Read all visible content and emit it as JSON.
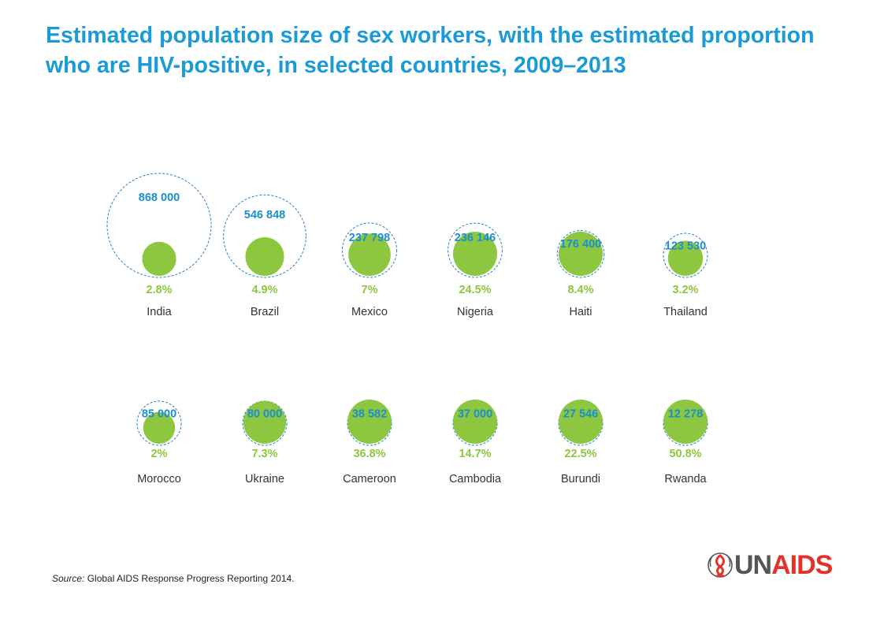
{
  "title": "Estimated population size of sex workers, with the estimated proportion who are HIV-positive, in selected countries, 2009–2013",
  "source": {
    "label": "Source:",
    "text": "Global AIDS Response Progress Reporting 2014."
  },
  "logo": {
    "part1": "UN",
    "part2": "AIDS",
    "icon": "ribbon-emblem-icon"
  },
  "colors": {
    "title": "#1a9ad6",
    "population_label": "#1a8fd0",
    "outline": "#2c7fc4",
    "hiv_bubble": "#8dc63f",
    "hiv_label": "#8dc63f",
    "country_label": "#333333",
    "logo_red": "#e4322b",
    "logo_gray": "#555555"
  },
  "chart_data": {
    "type": "bubble",
    "title": "Estimated population size of sex workers, with the estimated proportion who are HIV-positive, in selected countries, 2009–2013",
    "items": [
      {
        "country": "India",
        "population": 868000,
        "population_label": "868 000",
        "hiv_pct": 2.8,
        "hiv_label": "2.8%"
      },
      {
        "country": "Brazil",
        "population": 546848,
        "population_label": "546 848",
        "hiv_pct": 4.9,
        "hiv_label": "4.9%"
      },
      {
        "country": "Mexico",
        "population": 237798,
        "population_label": "237 798",
        "hiv_pct": 7,
        "hiv_label": "7%"
      },
      {
        "country": "Nigeria",
        "population": 236146,
        "population_label": "236 146",
        "hiv_pct": 24.5,
        "hiv_label": "24.5%"
      },
      {
        "country": "Haiti",
        "population": 176400,
        "population_label": "176 400",
        "hiv_pct": 8.4,
        "hiv_label": "8.4%"
      },
      {
        "country": "Thailand",
        "population": 123530,
        "population_label": "123 530",
        "hiv_pct": 3.2,
        "hiv_label": "3.2%"
      },
      {
        "country": "Morocco",
        "population": 85000,
        "population_label": "85 000",
        "hiv_pct": 2,
        "hiv_label": "2%"
      },
      {
        "country": "Ukraine",
        "population": 80000,
        "population_label": "80 000",
        "hiv_pct": 7.3,
        "hiv_label": "7.3%"
      },
      {
        "country": "Cameroon",
        "population": 38582,
        "population_label": "38 582",
        "hiv_pct": 36.8,
        "hiv_label": "36.8%"
      },
      {
        "country": "Cambodia",
        "population": 37000,
        "population_label": "37 000",
        "hiv_pct": 14.7,
        "hiv_label": "14.7%"
      },
      {
        "country": "Burundi",
        "population": 27546,
        "population_label": "27 546",
        "hiv_pct": 22.5,
        "hiv_label": "22.5%"
      },
      {
        "country": "Rwanda",
        "population": 12278,
        "population_label": "12 278",
        "hiv_pct": 50.8,
        "hiv_label": "50.8%"
      }
    ]
  }
}
